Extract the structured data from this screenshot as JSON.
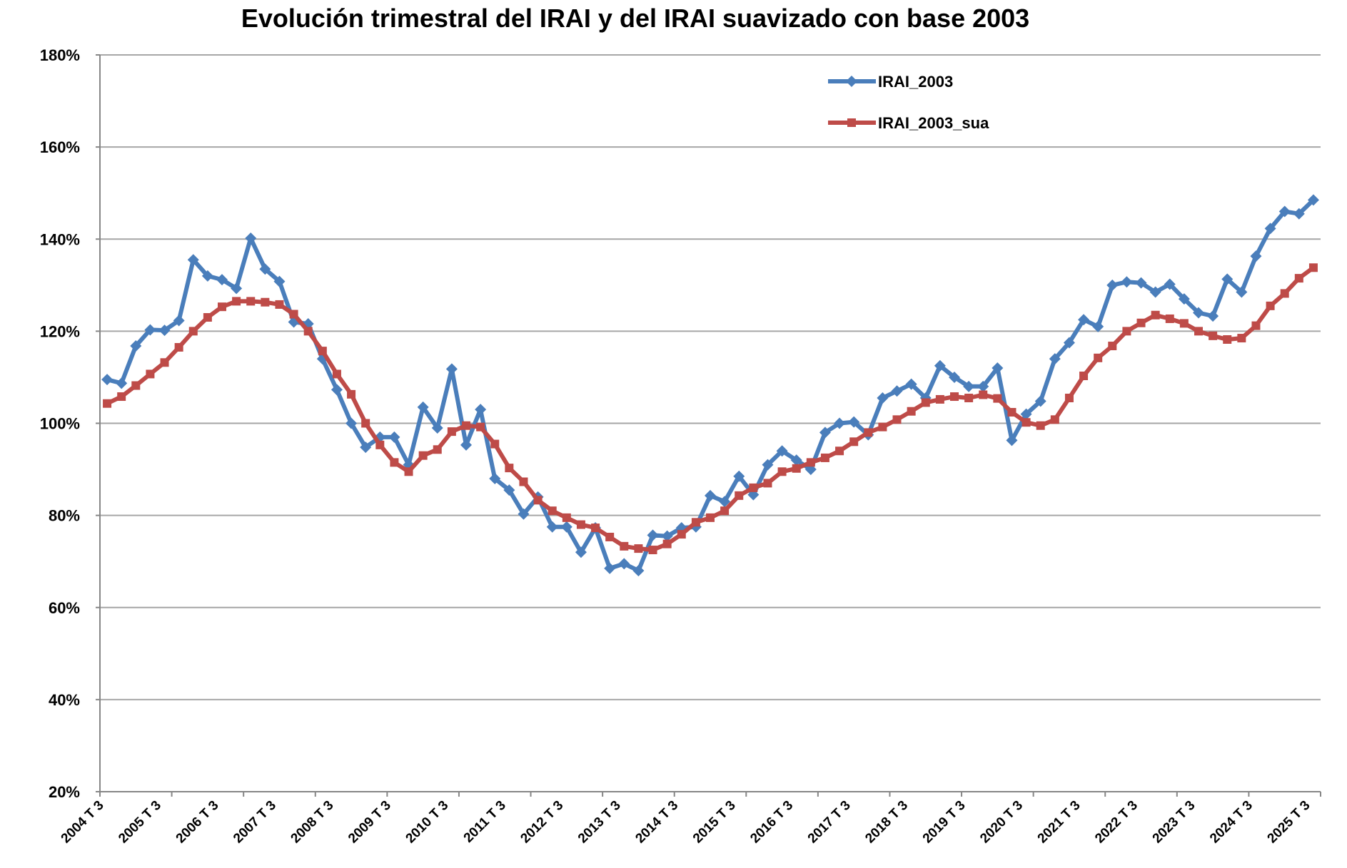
{
  "chart_data": {
    "type": "line",
    "title": "Evolución trimestral del IRAI y del IRAI suavizado con base 2003",
    "xlabel": "",
    "ylabel": "",
    "ylim": [
      20,
      180
    ],
    "y_ticks": [
      "20%",
      "40%",
      "60%",
      "80%",
      "100%",
      "120%",
      "140%",
      "160%",
      "180%"
    ],
    "y_tick_values": [
      20,
      40,
      60,
      80,
      100,
      120,
      140,
      160,
      180
    ],
    "grid": true,
    "legend_position": "top-right",
    "x_first": "2004 T3",
    "x_last": "2025 T3",
    "x_tick_labels": [
      "2004 T 3",
      "2005 T 3",
      "2006 T 3",
      "2007 T 3",
      "2008 T 3",
      "2009 T 3",
      "2010 T 3",
      "2011 T 3",
      "2012 T 3",
      "2013 T 3",
      "2014 T 3",
      "2015 T 3",
      "2016 T 3",
      "2017 T 3",
      "2018 T 3",
      "2019 T 3",
      "2020 T 3",
      "2021 T 3",
      "2022 T 3",
      "2023 T 3",
      "2024 T 3",
      "2025 T 3"
    ],
    "series": [
      {
        "name": "IRAI_2003",
        "color": "#4a7ebb",
        "marker": "diamond",
        "values": [
          109.5,
          108.7,
          116.8,
          120.3,
          120.2,
          122.3,
          135.5,
          132,
          131.2,
          129.3,
          140.2,
          133.5,
          130.8,
          122,
          121.6,
          114,
          107.3,
          100,
          94.8,
          97,
          97,
          91,
          103.5,
          99,
          111.8,
          95.3,
          103,
          88,
          85.5,
          80.3,
          84,
          77.5,
          77.5,
          72,
          77.3,
          68.5,
          69.5,
          68,
          75.7,
          75.5,
          77.3,
          77.5,
          84.3,
          83,
          88.5,
          84.5,
          91,
          94,
          92,
          90,
          98,
          100,
          100.3,
          97.5,
          105.5,
          107,
          108.5,
          105.5,
          112.5,
          110,
          108,
          108,
          112,
          96.3,
          102,
          104.8,
          114,
          117.5,
          122.5,
          121,
          130,
          130.7,
          130.5,
          128.5,
          130.2,
          127,
          124,
          123.3,
          131.3,
          128.5,
          136.3,
          142.3,
          146,
          145.5,
          148.5
        ]
      },
      {
        "name": "IRAI_2003_sua",
        "color": "#be4b48",
        "marker": "square",
        "values": [
          104.3,
          105.8,
          108.2,
          110.7,
          113.2,
          116.5,
          120,
          123,
          125.3,
          126.5,
          126.5,
          126.3,
          125.8,
          123.7,
          120,
          115.7,
          110.7,
          106.3,
          100,
          95.3,
          91.5,
          89.5,
          93,
          94.3,
          98.2,
          99.5,
          99.2,
          95.5,
          90.3,
          87.3,
          83.3,
          81,
          79.5,
          78,
          77.3,
          75.3,
          73.3,
          72.8,
          72.5,
          73.8,
          75.9,
          78.5,
          79.5,
          81,
          84.3,
          86,
          87,
          89.5,
          90.2,
          91.5,
          92.5,
          94,
          96,
          98,
          99.2,
          100.8,
          102.6,
          104.5,
          105.2,
          105.8,
          105.5,
          106.2,
          105.4,
          102.4,
          100.2,
          99.5,
          100.8,
          105.5,
          110.3,
          114.2,
          116.8,
          120,
          121.8,
          123.5,
          122.7,
          121.7,
          120,
          119,
          118.2,
          118.5,
          121.2,
          125.5,
          128.2,
          131.5,
          133.8
        ]
      }
    ]
  }
}
